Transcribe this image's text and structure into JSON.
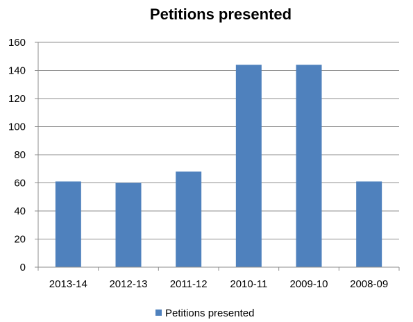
{
  "chart_data": {
    "type": "bar",
    "title": "Petitions presented",
    "xlabel": "",
    "ylabel": "",
    "categories": [
      "2013-14",
      "2012-13",
      "2011-12",
      "2010-11",
      "2009-10",
      "2008-09"
    ],
    "series": [
      {
        "name": "Petitions presented",
        "values": [
          61,
          60,
          68,
          144,
          144,
          61
        ],
        "color": "#4F81BD"
      }
    ],
    "ylim": [
      0,
      160
    ],
    "yticks": [
      0,
      20,
      40,
      60,
      80,
      100,
      120,
      140,
      160
    ],
    "ytick_labels": [
      "0",
      "20",
      "40",
      "60",
      "80",
      "100",
      "120",
      "140",
      "160"
    ],
    "grid": true,
    "legend_position": "bottom"
  }
}
